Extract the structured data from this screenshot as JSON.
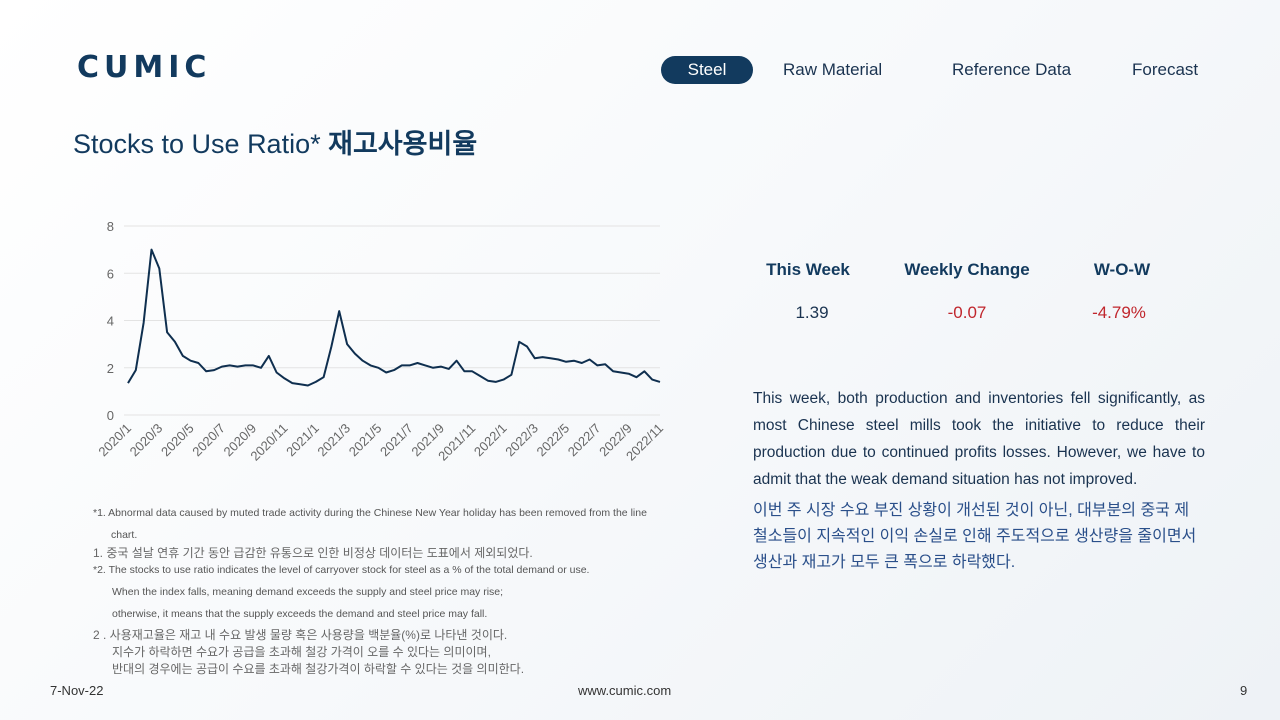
{
  "logo": "CUMIC",
  "nav": [
    "Steel",
    "Raw Material",
    "Reference Data",
    "Forecast"
  ],
  "title": {
    "en": "Stocks to Use Ratio*",
    "ko": "재고사용비율"
  },
  "chart_data": {
    "type": "line",
    "color": "#0f2f4f",
    "grid": true,
    "ylim": [
      0,
      8
    ],
    "yticks": [
      0,
      2,
      4,
      6,
      8
    ],
    "categories": [
      "2020/1",
      null,
      null,
      null,
      "2020/3",
      null,
      null,
      null,
      "2020/5",
      null,
      null,
      null,
      "2020/7",
      null,
      null,
      null,
      "2020/9",
      null,
      null,
      null,
      "2020/11",
      null,
      null,
      null,
      "2021/1",
      null,
      null,
      null,
      "2021/3",
      null,
      null,
      null,
      "2021/5",
      null,
      null,
      null,
      "2021/7",
      null,
      null,
      null,
      "2021/9",
      null,
      null,
      null,
      "2021/11",
      null,
      null,
      null,
      "2022/1",
      null,
      null,
      null,
      "2022/3",
      null,
      null,
      null,
      "2022/5",
      null,
      null,
      null,
      "2022/7",
      null,
      null,
      null,
      "2022/9",
      null,
      null,
      null,
      "2022/11"
    ],
    "values": [
      1.35,
      1.9,
      3.9,
      7.0,
      6.2,
      3.5,
      3.1,
      2.5,
      2.3,
      2.2,
      1.85,
      1.9,
      2.05,
      2.1,
      2.05,
      2.1,
      2.1,
      2.0,
      2.5,
      1.8,
      1.55,
      1.35,
      1.3,
      1.25,
      1.4,
      1.6,
      2.9,
      4.4,
      3.0,
      2.6,
      2.3,
      2.1,
      2.0,
      1.8,
      1.9,
      2.1,
      2.1,
      2.2,
      2.1,
      2.0,
      2.05,
      1.95,
      2.3,
      1.85,
      1.85,
      1.65,
      1.45,
      1.4,
      1.5,
      1.7,
      3.1,
      2.9,
      2.4,
      2.45,
      2.4,
      2.35,
      2.25,
      2.3,
      2.2,
      2.35,
      2.1,
      2.15,
      1.85,
      1.8,
      1.75,
      1.6,
      1.85,
      1.5,
      1.4
    ]
  },
  "table": {
    "headers": [
      "This Week",
      "Weekly Change",
      "W-O-W"
    ],
    "values": [
      1.39,
      -0.07,
      "-4.79%"
    ]
  },
  "summary_en": "This week, both production and inventories fell significantly, as most Chinese steel mills took the initiative to reduce their production due to continued profits losses. However, we have to admit that the weak demand situation has not improved.",
  "summary_ko": "이번 주 시장 수요 부진 상황이 개선된 것이 아닌, 대부분의 중국 제철소들이 지속적인 이익 손실로 인해 주도적으로 생산량을 줄이면서 생산과 재고가 모두 큰 폭으로 하락했다.",
  "notes": [
    "*1. Abnormal data caused by muted trade activity during the Chinese New Year holiday has been removed from the line chart.",
    "1. 중국 설날 연휴 기간 동안 급감한 유통으로 인한 비정상 데이터는 도표에서 제외되었다.",
    "*2. The stocks to use ratio indicates the level of carryover stock for steel as a % of the total demand or use.",
    "When the index falls, meaning demand exceeds the supply and steel price may rise;",
    "otherwise, it means that the supply exceeds the demand and steel price may fall.",
    "2 . 사용재고율은 재고 내 수요 발생 물량 혹은 사용량을 백분율(%)로 나타낸 것이다.",
    "지수가 하락하면 수요가 공급을 초과해 철강 가격이 오를 수 있다는 의미이며,",
    "반대의 경우에는 공급이 수요를 초과해 철강가격이 하락할 수 있다는 것을 의미한다."
  ],
  "footer": {
    "date": "7-Nov-22",
    "url": "www.cumic.com",
    "page": "9"
  }
}
